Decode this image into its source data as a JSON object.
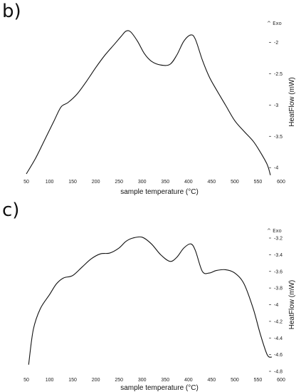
{
  "panels": [
    {
      "label": "b)"
    },
    {
      "label": "c)"
    }
  ],
  "chart_data": [
    {
      "type": "line",
      "title": "",
      "xlabel": "sample temperature (°C)",
      "ylabel": "HeatFlow (mW)",
      "xlim": [
        50,
        600
      ],
      "ylim": [
        -4.1,
        -1.8
      ],
      "x_ticks": [
        50,
        100,
        150,
        200,
        250,
        300,
        350,
        400,
        450,
        500,
        550,
        600
      ],
      "y_ticks": [
        -2,
        -2.5,
        -3,
        -3.5,
        -4
      ],
      "y_tick_labels": [
        "-2",
        "-2.5",
        "-3",
        "-3.5",
        "-4"
      ],
      "corner_marker": "^ Exo",
      "series": [
        {
          "x": [
            50,
            70,
            90,
            110,
            125,
            140,
            160,
            180,
            200,
            220,
            240,
            255,
            265,
            275,
            290,
            305,
            320,
            340,
            360,
            375,
            390,
            405,
            415,
            430,
            445,
            460,
            480,
            500,
            520,
            540,
            555,
            570,
            577
          ],
          "y": [
            -4.1,
            -3.85,
            -3.55,
            -3.25,
            -3.03,
            -2.96,
            -2.82,
            -2.62,
            -2.4,
            -2.2,
            -2.03,
            -1.9,
            -1.82,
            -1.83,
            -1.98,
            -2.18,
            -2.3,
            -2.36,
            -2.35,
            -2.2,
            -1.98,
            -1.88,
            -1.95,
            -2.28,
            -2.55,
            -2.75,
            -3.0,
            -3.25,
            -3.42,
            -3.58,
            -3.75,
            -3.95,
            -4.12
          ]
        }
      ]
    },
    {
      "type": "line",
      "title": "",
      "xlabel": "sample temperature (°C)",
      "ylabel": "HeatFlow (mW)",
      "xlim": [
        50,
        600
      ],
      "ylim": [
        -4.8,
        -3.2
      ],
      "x_ticks": [
        50,
        100,
        150,
        200,
        250,
        300,
        350,
        400,
        450,
        500,
        550,
        600
      ],
      "y_ticks": [
        -3.2,
        -3.4,
        -3.6,
        -3.8,
        -4,
        -4.2,
        -4.4,
        -4.6,
        -4.8
      ],
      "y_tick_labels": [
        "-3.2",
        "-3.4",
        "-3.6",
        "-3.8",
        "-4",
        "-4.2",
        "-4.4",
        "-4.6",
        "-4.8"
      ],
      "corner_marker": "^ Exo",
      "series": [
        {
          "x": [
            55,
            65,
            80,
            100,
            115,
            130,
            150,
            170,
            190,
            210,
            230,
            250,
            265,
            280,
            300,
            320,
            340,
            360,
            375,
            390,
            405,
            415,
            430,
            445,
            460,
            480,
            500,
            520,
            540,
            555,
            570,
            580
          ],
          "y": [
            -4.72,
            -4.3,
            -4.05,
            -3.88,
            -3.75,
            -3.68,
            -3.65,
            -3.55,
            -3.45,
            -3.39,
            -3.38,
            -3.32,
            -3.24,
            -3.2,
            -3.19,
            -3.27,
            -3.4,
            -3.48,
            -3.43,
            -3.32,
            -3.27,
            -3.35,
            -3.6,
            -3.62,
            -3.59,
            -3.58,
            -3.62,
            -3.75,
            -4.05,
            -4.35,
            -4.6,
            -4.63
          ]
        }
      ]
    }
  ]
}
